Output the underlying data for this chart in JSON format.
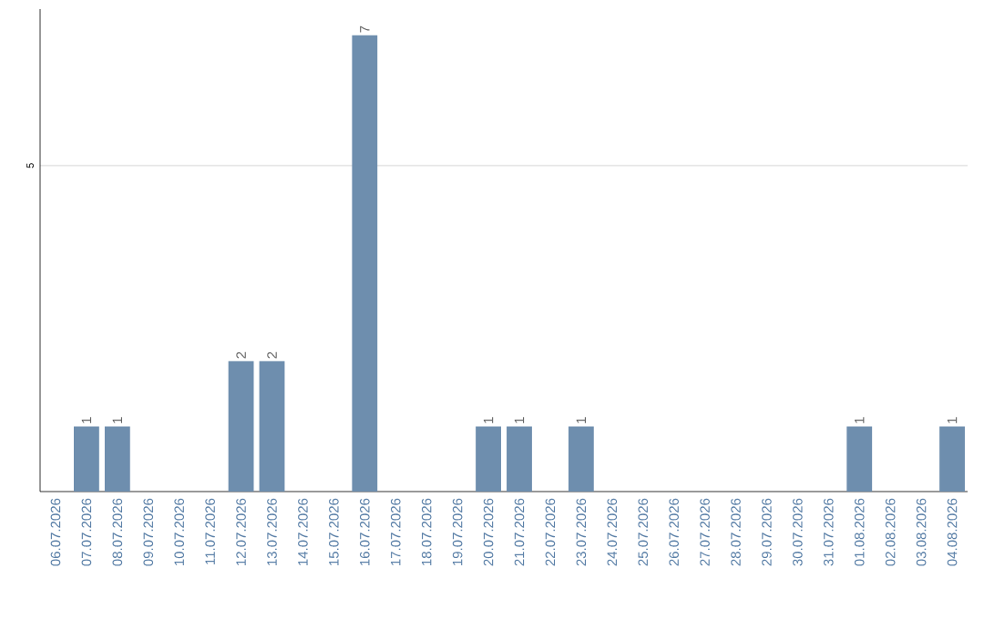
{
  "chart_data": {
    "type": "bar",
    "categories": [
      "06.07.2026",
      "07.07.2026",
      "08.07.2026",
      "09.07.2026",
      "10.07.2026",
      "11.07.2026",
      "12.07.2026",
      "13.07.2026",
      "14.07.2026",
      "15.07.2026",
      "16.07.2026",
      "17.07.2026",
      "18.07.2026",
      "19.07.2026",
      "20.07.2026",
      "21.07.2026",
      "22.07.2026",
      "23.07.2026",
      "24.07.2026",
      "25.07.2026",
      "26.07.2026",
      "27.07.2026",
      "28.07.2026",
      "29.07.2026",
      "30.07.2026",
      "31.07.2026",
      "01.08.2026",
      "02.08.2026",
      "03.08.2026",
      "04.08.2026"
    ],
    "values": [
      0,
      1,
      1,
      0,
      0,
      0,
      2,
      2,
      0,
      0,
      7,
      0,
      0,
      0,
      1,
      1,
      0,
      1,
      0,
      0,
      0,
      0,
      0,
      0,
      0,
      0,
      1,
      0,
      0,
      1
    ],
    "value_labels": [
      null,
      "1",
      "1",
      null,
      null,
      null,
      "2",
      "2",
      null,
      null,
      "7",
      null,
      null,
      null,
      "1",
      "1",
      null,
      "1",
      null,
      null,
      null,
      null,
      null,
      null,
      null,
      null,
      "1",
      null,
      null,
      "1"
    ],
    "color": "#6e8eae",
    "ylim": [
      0,
      7.4
    ],
    "yticks": [
      5
    ],
    "grid": "y"
  }
}
